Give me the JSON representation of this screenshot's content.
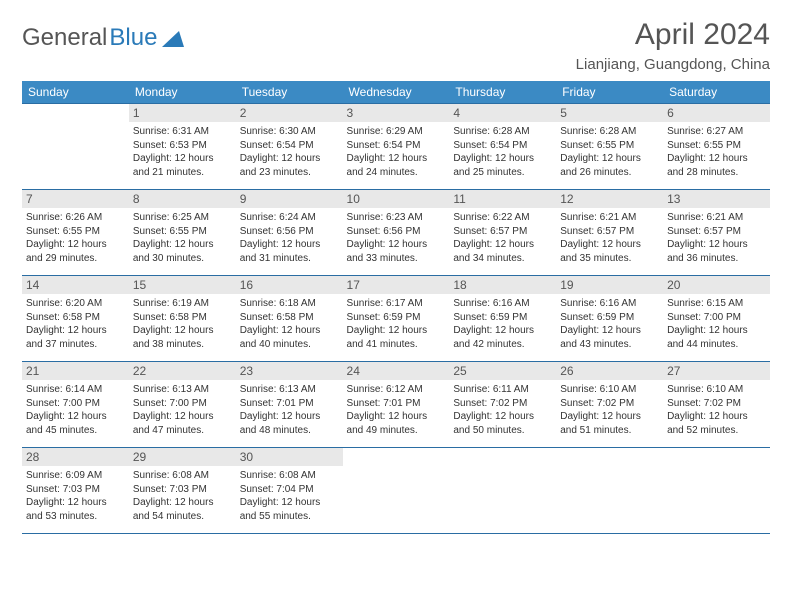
{
  "logo": {
    "text1": "General",
    "text2": "Blue"
  },
  "title": "April 2024",
  "location": "Lianjiang, Guangdong, China",
  "day_headers": [
    "Sunday",
    "Monday",
    "Tuesday",
    "Wednesday",
    "Thursday",
    "Friday",
    "Saturday"
  ],
  "colors": {
    "header_bg": "#3b8ac4",
    "header_text": "#ffffff",
    "border": "#2a6da3",
    "daynum_bg": "#e8e8e8",
    "body_text": "#333333",
    "title_text": "#555555"
  },
  "weeks": [
    [
      {
        "n": "",
        "sr": "",
        "ss": "",
        "dl1": "",
        "dl2": ""
      },
      {
        "n": "1",
        "sr": "Sunrise: 6:31 AM",
        "ss": "Sunset: 6:53 PM",
        "dl1": "Daylight: 12 hours",
        "dl2": "and 21 minutes."
      },
      {
        "n": "2",
        "sr": "Sunrise: 6:30 AM",
        "ss": "Sunset: 6:54 PM",
        "dl1": "Daylight: 12 hours",
        "dl2": "and 23 minutes."
      },
      {
        "n": "3",
        "sr": "Sunrise: 6:29 AM",
        "ss": "Sunset: 6:54 PM",
        "dl1": "Daylight: 12 hours",
        "dl2": "and 24 minutes."
      },
      {
        "n": "4",
        "sr": "Sunrise: 6:28 AM",
        "ss": "Sunset: 6:54 PM",
        "dl1": "Daylight: 12 hours",
        "dl2": "and 25 minutes."
      },
      {
        "n": "5",
        "sr": "Sunrise: 6:28 AM",
        "ss": "Sunset: 6:55 PM",
        "dl1": "Daylight: 12 hours",
        "dl2": "and 26 minutes."
      },
      {
        "n": "6",
        "sr": "Sunrise: 6:27 AM",
        "ss": "Sunset: 6:55 PM",
        "dl1": "Daylight: 12 hours",
        "dl2": "and 28 minutes."
      }
    ],
    [
      {
        "n": "7",
        "sr": "Sunrise: 6:26 AM",
        "ss": "Sunset: 6:55 PM",
        "dl1": "Daylight: 12 hours",
        "dl2": "and 29 minutes."
      },
      {
        "n": "8",
        "sr": "Sunrise: 6:25 AM",
        "ss": "Sunset: 6:55 PM",
        "dl1": "Daylight: 12 hours",
        "dl2": "and 30 minutes."
      },
      {
        "n": "9",
        "sr": "Sunrise: 6:24 AM",
        "ss": "Sunset: 6:56 PM",
        "dl1": "Daylight: 12 hours",
        "dl2": "and 31 minutes."
      },
      {
        "n": "10",
        "sr": "Sunrise: 6:23 AM",
        "ss": "Sunset: 6:56 PM",
        "dl1": "Daylight: 12 hours",
        "dl2": "and 33 minutes."
      },
      {
        "n": "11",
        "sr": "Sunrise: 6:22 AM",
        "ss": "Sunset: 6:57 PM",
        "dl1": "Daylight: 12 hours",
        "dl2": "and 34 minutes."
      },
      {
        "n": "12",
        "sr": "Sunrise: 6:21 AM",
        "ss": "Sunset: 6:57 PM",
        "dl1": "Daylight: 12 hours",
        "dl2": "and 35 minutes."
      },
      {
        "n": "13",
        "sr": "Sunrise: 6:21 AM",
        "ss": "Sunset: 6:57 PM",
        "dl1": "Daylight: 12 hours",
        "dl2": "and 36 minutes."
      }
    ],
    [
      {
        "n": "14",
        "sr": "Sunrise: 6:20 AM",
        "ss": "Sunset: 6:58 PM",
        "dl1": "Daylight: 12 hours",
        "dl2": "and 37 minutes."
      },
      {
        "n": "15",
        "sr": "Sunrise: 6:19 AM",
        "ss": "Sunset: 6:58 PM",
        "dl1": "Daylight: 12 hours",
        "dl2": "and 38 minutes."
      },
      {
        "n": "16",
        "sr": "Sunrise: 6:18 AM",
        "ss": "Sunset: 6:58 PM",
        "dl1": "Daylight: 12 hours",
        "dl2": "and 40 minutes."
      },
      {
        "n": "17",
        "sr": "Sunrise: 6:17 AM",
        "ss": "Sunset: 6:59 PM",
        "dl1": "Daylight: 12 hours",
        "dl2": "and 41 minutes."
      },
      {
        "n": "18",
        "sr": "Sunrise: 6:16 AM",
        "ss": "Sunset: 6:59 PM",
        "dl1": "Daylight: 12 hours",
        "dl2": "and 42 minutes."
      },
      {
        "n": "19",
        "sr": "Sunrise: 6:16 AM",
        "ss": "Sunset: 6:59 PM",
        "dl1": "Daylight: 12 hours",
        "dl2": "and 43 minutes."
      },
      {
        "n": "20",
        "sr": "Sunrise: 6:15 AM",
        "ss": "Sunset: 7:00 PM",
        "dl1": "Daylight: 12 hours",
        "dl2": "and 44 minutes."
      }
    ],
    [
      {
        "n": "21",
        "sr": "Sunrise: 6:14 AM",
        "ss": "Sunset: 7:00 PM",
        "dl1": "Daylight: 12 hours",
        "dl2": "and 45 minutes."
      },
      {
        "n": "22",
        "sr": "Sunrise: 6:13 AM",
        "ss": "Sunset: 7:00 PM",
        "dl1": "Daylight: 12 hours",
        "dl2": "and 47 minutes."
      },
      {
        "n": "23",
        "sr": "Sunrise: 6:13 AM",
        "ss": "Sunset: 7:01 PM",
        "dl1": "Daylight: 12 hours",
        "dl2": "and 48 minutes."
      },
      {
        "n": "24",
        "sr": "Sunrise: 6:12 AM",
        "ss": "Sunset: 7:01 PM",
        "dl1": "Daylight: 12 hours",
        "dl2": "and 49 minutes."
      },
      {
        "n": "25",
        "sr": "Sunrise: 6:11 AM",
        "ss": "Sunset: 7:02 PM",
        "dl1": "Daylight: 12 hours",
        "dl2": "and 50 minutes."
      },
      {
        "n": "26",
        "sr": "Sunrise: 6:10 AM",
        "ss": "Sunset: 7:02 PM",
        "dl1": "Daylight: 12 hours",
        "dl2": "and 51 minutes."
      },
      {
        "n": "27",
        "sr": "Sunrise: 6:10 AM",
        "ss": "Sunset: 7:02 PM",
        "dl1": "Daylight: 12 hours",
        "dl2": "and 52 minutes."
      }
    ],
    [
      {
        "n": "28",
        "sr": "Sunrise: 6:09 AM",
        "ss": "Sunset: 7:03 PM",
        "dl1": "Daylight: 12 hours",
        "dl2": "and 53 minutes."
      },
      {
        "n": "29",
        "sr": "Sunrise: 6:08 AM",
        "ss": "Sunset: 7:03 PM",
        "dl1": "Daylight: 12 hours",
        "dl2": "and 54 minutes."
      },
      {
        "n": "30",
        "sr": "Sunrise: 6:08 AM",
        "ss": "Sunset: 7:04 PM",
        "dl1": "Daylight: 12 hours",
        "dl2": "and 55 minutes."
      },
      {
        "n": "",
        "sr": "",
        "ss": "",
        "dl1": "",
        "dl2": ""
      },
      {
        "n": "",
        "sr": "",
        "ss": "",
        "dl1": "",
        "dl2": ""
      },
      {
        "n": "",
        "sr": "",
        "ss": "",
        "dl1": "",
        "dl2": ""
      },
      {
        "n": "",
        "sr": "",
        "ss": "",
        "dl1": "",
        "dl2": ""
      }
    ]
  ]
}
